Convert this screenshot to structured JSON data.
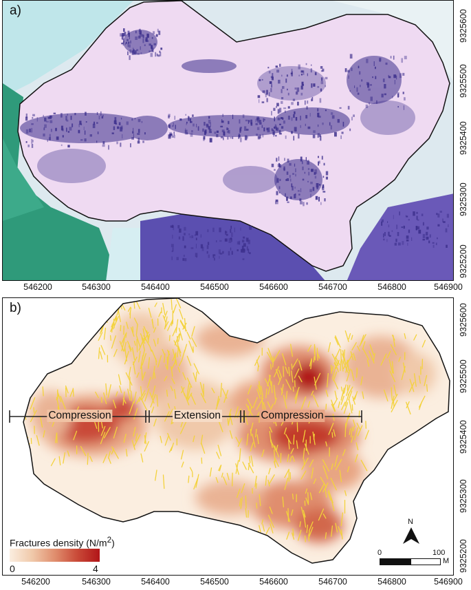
{
  "panels": {
    "a": {
      "label": "a)"
    },
    "b": {
      "label": "b)"
    }
  },
  "axes": {
    "x_ticks": [
      "546200",
      "546300",
      "546400",
      "546500",
      "546600",
      "546700",
      "546800",
      "546900"
    ],
    "a_y_ticks": [
      "9325600",
      "9325500",
      "9325400",
      "9325300",
      "9325200"
    ],
    "b_y_ticks": [
      "9325600",
      "9325500",
      "9325400",
      "9325300",
      "9325200"
    ]
  },
  "zones": {
    "compression_left": "Compression",
    "extension": "Extension",
    "compression_right": "Compression"
  },
  "legend": {
    "title_prefix": "Fractures density (N/m",
    "title_sup": "2",
    "title_suffix": ")",
    "min": "0",
    "max": "4",
    "colors": [
      "#fbeee0",
      "#f0c9aa",
      "#e08e6e",
      "#c94a38",
      "#b11518"
    ]
  },
  "north_arrow": {
    "label": "N"
  },
  "scale_bar": {
    "min": "0",
    "max": "100",
    "unit": "M"
  },
  "colors": {
    "fracture": "#f3d23b",
    "outline": "#111111",
    "image_tint": "#ece0f2",
    "dark_patches": "#3c2f8c"
  }
}
